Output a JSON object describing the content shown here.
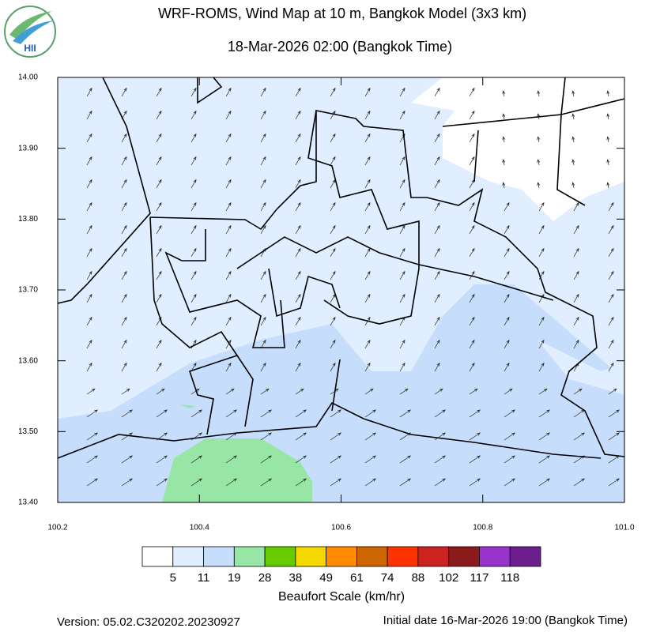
{
  "header": {
    "title": "WRF-ROMS, Wind Map at 10 m, Bangkok Model (3x3 km)",
    "subtitle": "18-Mar-2026 02:00 (Bangkok Time)",
    "logo_text": "HII"
  },
  "map": {
    "xlim": [
      100.2,
      101.0
    ],
    "ylim": [
      13.4,
      14.0
    ],
    "xticks": [
      100.2,
      100.4,
      100.6,
      100.8,
      {
        "value": 101.0,
        "label": "101.0"
      }
    ],
    "yticks": [
      {
        "value": 13.4,
        "label": "13.40"
      },
      {
        "value": 13.5,
        "label": "13.50"
      },
      {
        "value": 13.6,
        "label": "13.60"
      },
      {
        "value": 13.7,
        "label": "13.70"
      },
      {
        "value": 13.8,
        "label": "13.80"
      },
      {
        "value": 13.9,
        "label": "13.90"
      },
      {
        "value": 14.0,
        "label": "14.00"
      }
    ]
  },
  "colorbar": {
    "title": "Beaufort Scale (km/hr)",
    "colors": [
      "#ffffff",
      "#e0eeff",
      "#c6ddfb",
      "#98e6a6",
      "#66cc00",
      "#f5d800",
      "#ff8c00",
      "#cc6600",
      "#ff3300",
      "#cc2222",
      "#8b1a1a",
      "#9933cc",
      "#6a1f8c"
    ],
    "labels": [
      5,
      11,
      19,
      28,
      38,
      49,
      61,
      74,
      88,
      102,
      117,
      118
    ]
  },
  "footer": {
    "version": "Version: 05.02.C320202.20230927",
    "initial_date": "Initial date 16-Mar-2026 19:00 (Bangkok Time)"
  }
}
